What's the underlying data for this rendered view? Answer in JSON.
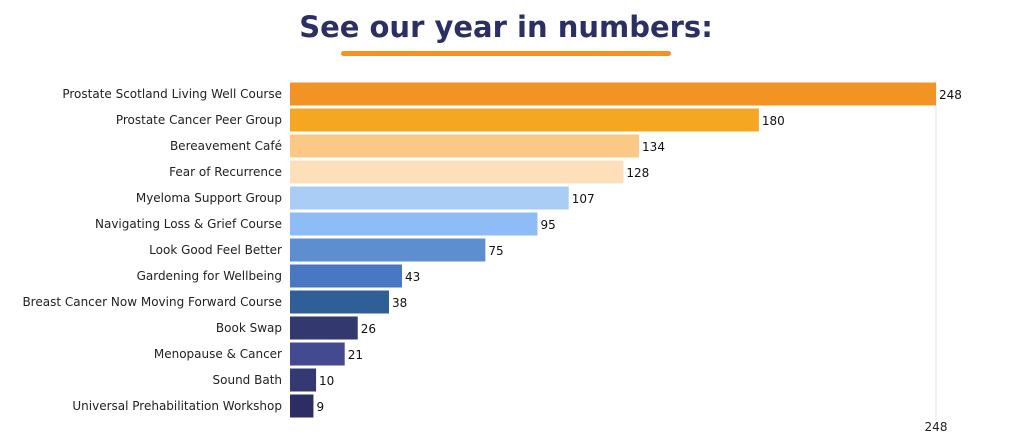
{
  "page": {
    "title": "See our year in numbers:",
    "accent_color": "#f39324",
    "title_color": "#2c2f63"
  },
  "chart_data": {
    "type": "bar",
    "orientation": "horizontal",
    "title": "See our year in numbers:",
    "xlabel": "",
    "ylabel": "",
    "grid": false,
    "legend": "none",
    "xlim": [
      0,
      248
    ],
    "xticks": [
      248
    ],
    "categories": [
      "Prostate Scotland Living Well Course",
      "Prostate Cancer Peer Group",
      "Bereavement Café",
      "Fear of Recurrence",
      "Myeloma Support Group",
      "Navigating Loss & Grief Course",
      "Look Good Feel Better",
      "Gardening for Wellbeing",
      "Breast Cancer Now Moving Forward Course",
      "Book Swap",
      "Menopause & Cancer",
      "Sound Bath",
      "Universal Prehabilitation Workshop"
    ],
    "values": [
      248,
      180,
      134,
      128,
      107,
      95,
      75,
      43,
      38,
      26,
      21,
      10,
      9
    ],
    "colors": [
      "#f39324",
      "#f5a623",
      "#fbc985",
      "#fde0b9",
      "#aacdf6",
      "#8dbcf6",
      "#5d8fd0",
      "#4878c2",
      "#2f5f97",
      "#33386f",
      "#444a8f",
      "#343873",
      "#2b2d63"
    ]
  }
}
